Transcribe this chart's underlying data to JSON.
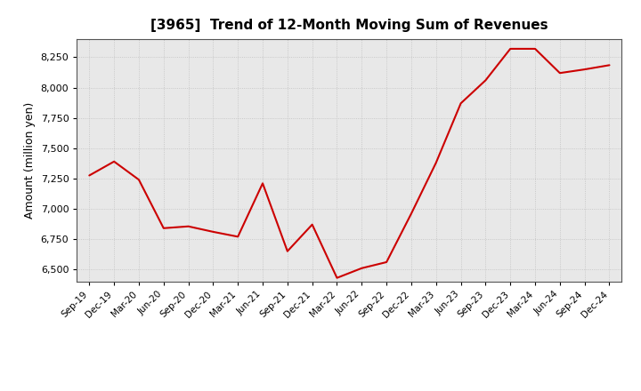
{
  "title": "[3965]  Trend of 12-Month Moving Sum of Revenues",
  "ylabel": "Amount (million yen)",
  "line_color": "#cc0000",
  "background_color": "#ffffff",
  "plot_bg_color": "#e8e8e8",
  "grid_color": "#bbbbbb",
  "ylim": [
    6400,
    8400
  ],
  "yticks": [
    6500,
    6750,
    7000,
    7250,
    7500,
    7750,
    8000,
    8250
  ],
  "x_labels": [
    "Sep-19",
    "Dec-19",
    "Mar-20",
    "Jun-20",
    "Sep-20",
    "Dec-20",
    "Mar-21",
    "Jun-21",
    "Sep-21",
    "Dec-21",
    "Mar-22",
    "Jun-22",
    "Sep-22",
    "Dec-22",
    "Mar-23",
    "Jun-23",
    "Sep-23",
    "Dec-23",
    "Mar-24",
    "Jun-24",
    "Sep-24",
    "Dec-24"
  ],
  "values": [
    7275,
    7390,
    7240,
    6840,
    6855,
    6810,
    6770,
    7210,
    6650,
    6870,
    6430,
    6510,
    6560,
    6960,
    7380,
    7870,
    8060,
    8320,
    8320,
    8120,
    8150,
    8185
  ]
}
